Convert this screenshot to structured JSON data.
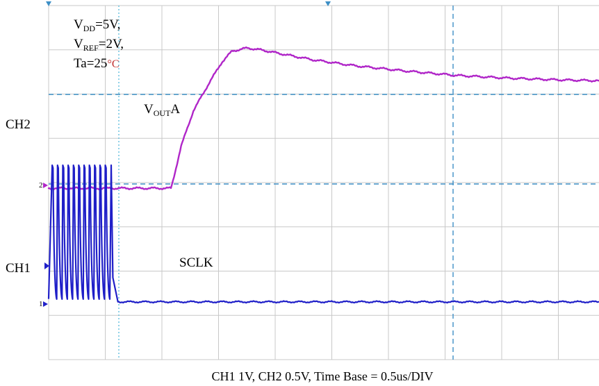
{
  "chart_data": {
    "type": "line",
    "title": "",
    "caption": "CH1 1V, CH2 0.5V, Time Base = 0.5us/DIV",
    "conditions": {
      "vdd": {
        "main": "V",
        "sub": "DD",
        "rest": "=5V,"
      },
      "vref": {
        "main": "V",
        "sub": "REF",
        "rest": "=2V,"
      },
      "ta": {
        "main": "Ta=25",
        "unit": "°C"
      }
    },
    "channel_labels": {
      "ch2": "CH2",
      "ch1": "CH1"
    },
    "trace_labels": {
      "vouta": {
        "main": "V",
        "sub": "OUT",
        "rest": "A"
      },
      "sclk": "SCLK"
    },
    "marker_labels": {
      "ch2": "2",
      "ch1": "1"
    },
    "grid": true,
    "xlim": [
      0,
      5.4
    ],
    "x_unit": "us",
    "divisions": {
      "x": 10.8,
      "y": 8
    },
    "series": [
      {
        "name": "VOUTA",
        "channel": "CH2",
        "color": "#b026c8",
        "x": [
          0,
          1.2,
          1.22,
          1.3,
          1.42,
          1.58,
          1.7,
          1.8,
          1.95,
          2.1,
          2.3,
          2.6,
          3.0,
          3.5,
          4.0,
          4.5,
          5.0,
          5.4
        ],
        "y_div": [
          -0.05,
          -0.05,
          0.12,
          0.9,
          1.7,
          2.35,
          2.8,
          3.05,
          3.12,
          3.07,
          2.98,
          2.85,
          2.72,
          2.6,
          2.5,
          2.44,
          2.4,
          2.38
        ]
      },
      {
        "name": "SCLK",
        "channel": "CH1",
        "color": "#1f1fc8",
        "x": [
          0,
          0.6,
          0.63,
          0.68,
          5.4
        ],
        "y_div": [
          "clock",
          "clock",
          0.6,
          0.05,
          0.05
        ]
      }
    ]
  }
}
